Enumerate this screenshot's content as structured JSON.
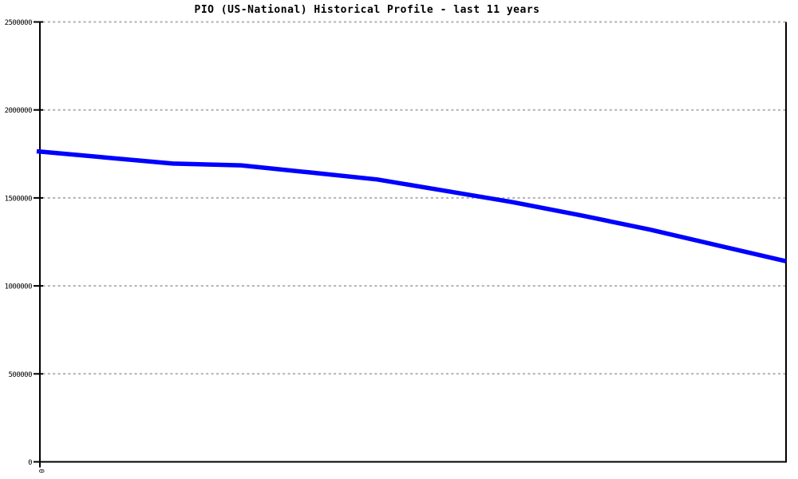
{
  "title": "PIO (US-National) Historical Profile - last 11 years",
  "chart_data": {
    "type": "line",
    "title": "PIO (US-National) Historical Profile - last 11 years",
    "x": [
      0,
      1,
      2,
      3,
      4,
      5,
      6,
      7,
      8,
      9,
      10,
      11
    ],
    "series": [
      {
        "name": "PIO (US-National)",
        "color": "#0000ff",
        "values": [
          1765000,
          1730000,
          1695000,
          1685000,
          1645000,
          1605000,
          1540000,
          1475000,
          1400000,
          1320000,
          1230000,
          1140000
        ]
      }
    ],
    "xlabel": "",
    "ylabel": "",
    "ylim": [
      0,
      2500000
    ],
    "ytick_interval": 500000,
    "ytick_labels": [
      "0",
      "500000",
      "1000000",
      "1500000",
      "2000000",
      "2500000"
    ],
    "xtick_labels_visible": [
      "0"
    ],
    "grid": "horizontal-dashed",
    "legend_position": "none",
    "colors": {
      "line": "#0000ff",
      "grid": "#b0b0b0",
      "axis": "#000000",
      "background": "#ffffff",
      "text": "#000000"
    }
  }
}
